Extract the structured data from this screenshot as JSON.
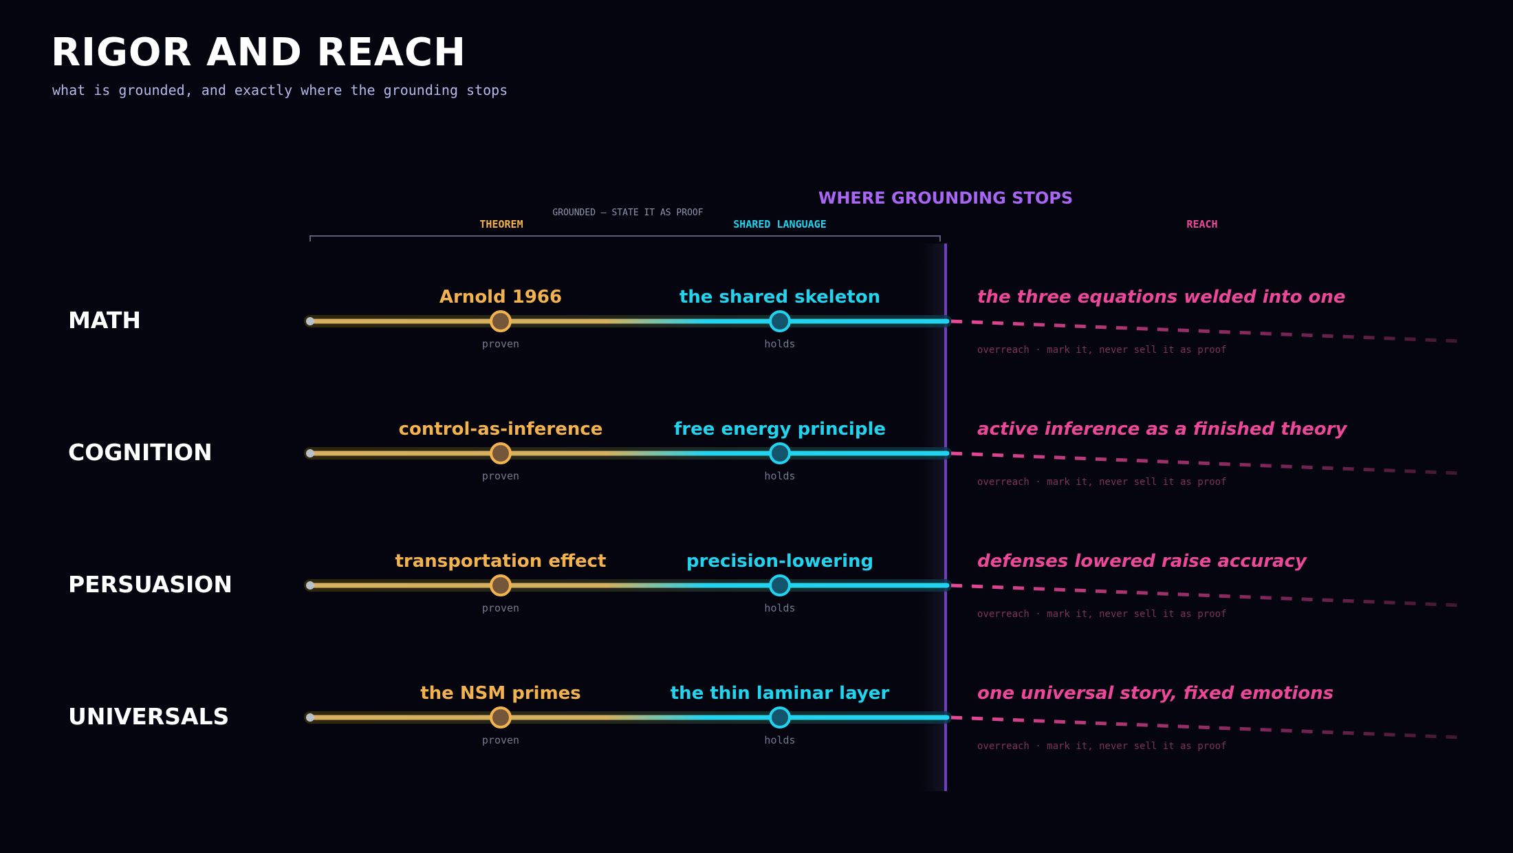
{
  "title": "RIGOR AND REACH",
  "subtitle": "what is grounded, and exactly where the grounding stops",
  "header": {
    "grounded_label": "GROUNDED — STATE IT AS PROOF",
    "theorem_label": "THEOREM",
    "shared_label": "SHARED LANGUAGE",
    "stops_label": "WHERE GROUNDING STOPS",
    "reach_label": "REACH"
  },
  "rows": [
    {
      "domain": "MATH",
      "theorem": "Arnold 1966",
      "theorem_status": "proven",
      "shared": "the shared skeleton",
      "shared_status": "holds",
      "reach": "the three equations welded into one",
      "reach_note": "overreach · mark it, never sell it as proof"
    },
    {
      "domain": "COGNITION",
      "theorem": "control-as-inference",
      "theorem_status": "proven",
      "shared": "free energy principle",
      "shared_status": "holds",
      "reach": "active inference as a finished theory",
      "reach_note": "overreach · mark it, never sell it as proof"
    },
    {
      "domain": "PERSUASION",
      "theorem": "transportation effect",
      "theorem_status": "proven",
      "shared": "precision-lowering",
      "shared_status": "holds",
      "reach": "defenses lowered raise accuracy",
      "reach_note": "overreach · mark it, never sell it as proof"
    },
    {
      "domain": "UNIVERSALS",
      "theorem": "the NSM primes",
      "theorem_status": "proven",
      "shared": "the thin laminar layer",
      "shared_status": "holds",
      "reach": "one universal story, fixed emotions",
      "reach_note": "overreach · mark it, never sell it as proof"
    }
  ],
  "colors": {
    "background": "#05050f",
    "theorem": "#f2b24e",
    "shared": "#22d3ee",
    "reach": "#ec4899",
    "boundary": "#8b5cf6",
    "stops_label": "#a866f2",
    "muted": "#727890"
  }
}
